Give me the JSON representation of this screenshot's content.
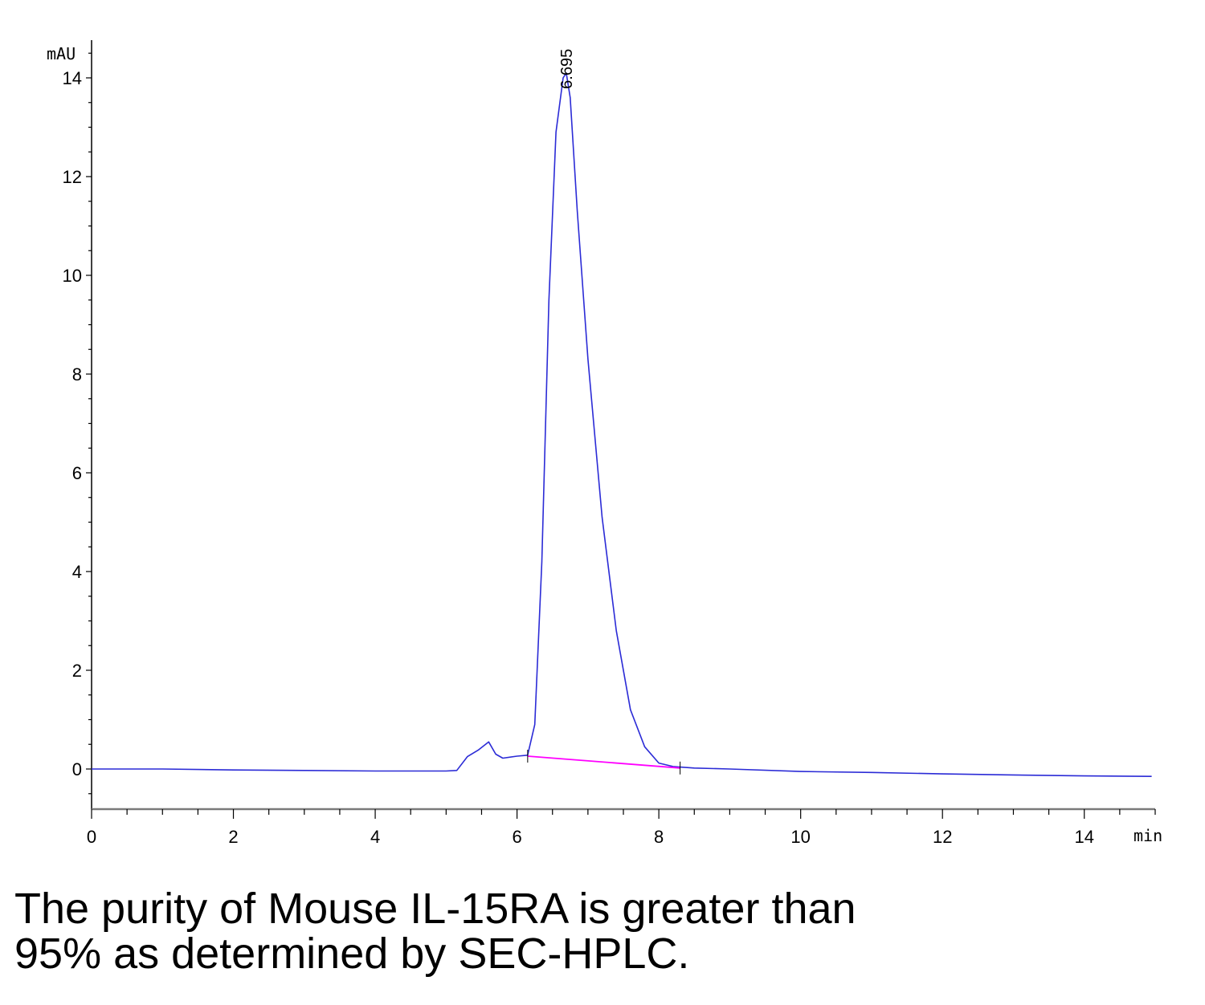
{
  "chart_data": {
    "type": "line",
    "title": "",
    "ylabel": "mAU",
    "xlabel": "min",
    "xlim": [
      0,
      15
    ],
    "ylim": [
      -0.8,
      14.7
    ],
    "x_ticks": [
      0,
      2,
      4,
      6,
      8,
      10,
      12,
      14
    ],
    "y_ticks": [
      0,
      2,
      4,
      6,
      8,
      10,
      12,
      14
    ],
    "x_tick_labels": [
      "0",
      "2",
      "4",
      "6",
      "8",
      "10",
      "12",
      "14"
    ],
    "y_tick_labels": [
      "0",
      "2",
      "4",
      "6",
      "8",
      "10",
      "12",
      "14"
    ],
    "grid": false,
    "series": [
      {
        "color": "#2b2bd6",
        "x": [
          0,
          1,
          2,
          3,
          4,
          5,
          5.15,
          5.3,
          5.45,
          5.6,
          5.7,
          5.8,
          6.0,
          6.15,
          6.25,
          6.35,
          6.45,
          6.55,
          6.65,
          6.695,
          6.75,
          6.85,
          7.0,
          7.2,
          7.4,
          7.6,
          7.8,
          8.0,
          8.2,
          8.5,
          9,
          10,
          11,
          12,
          13,
          14,
          14.95
        ],
        "y": [
          0.0,
          0.0,
          -0.02,
          -0.03,
          -0.04,
          -0.04,
          -0.03,
          0.25,
          0.38,
          0.55,
          0.3,
          0.22,
          0.26,
          0.28,
          0.9,
          4.2,
          9.5,
          12.9,
          14.0,
          14.1,
          13.6,
          11.3,
          8.3,
          5.1,
          2.8,
          1.2,
          0.45,
          0.12,
          0.05,
          0.02,
          0.0,
          -0.05,
          -0.07,
          -0.1,
          -0.12,
          -0.14,
          -0.15
        ]
      },
      {
        "color": "#ff00ff",
        "x": [
          6.15,
          8.3
        ],
        "y": [
          0.26,
          0.02
        ]
      }
    ],
    "annotations": [
      {
        "x": 6.695,
        "y": 14.1,
        "text": "6.695"
      }
    ]
  },
  "caption": {
    "line1": "The purity of Mouse IL-15RA is greater than",
    "line2": "95% as determined by SEC-HPLC."
  }
}
